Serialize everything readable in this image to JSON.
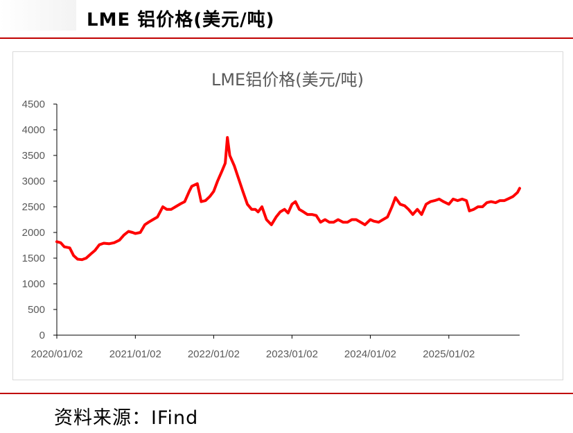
{
  "header": {
    "title": "LME 铝价格(美元/吨)"
  },
  "footer": {
    "source": "资料来源：IFind"
  },
  "chart_data": {
    "type": "line",
    "title": "LME铝价格(美元/吨)",
    "xlabel": "",
    "ylabel": "",
    "ylim": [
      0,
      4500
    ],
    "yticks": [
      "0",
      "500",
      "1000",
      "1500",
      "2000",
      "2500",
      "3000",
      "3500",
      "4000",
      "4500"
    ],
    "xlim": [
      "2020-01-02",
      "2025-11-28"
    ],
    "xticks": [
      {
        "date": "2020-01-02",
        "label": "2020/01/02"
      },
      {
        "date": "2021-01-02",
        "label": "2021/01/02"
      },
      {
        "date": "2022-01-02",
        "label": "2022/01/02"
      },
      {
        "date": "2023-01-02",
        "label": "2023/01/02"
      },
      {
        "date": "2024-01-02",
        "label": "2024/01/02"
      },
      {
        "date": "2025-01-02",
        "label": "2025/01/02"
      }
    ],
    "grid": false,
    "legend": "none",
    "colors": {
      "line": "#ff0000",
      "axis": "#000000",
      "text": "#595959"
    },
    "series": [
      {
        "x": [
          "2020-01-02",
          "2020-01-20",
          "2020-02-06",
          "2020-03-02",
          "2020-03-20",
          "2020-04-08",
          "2020-04-28",
          "2020-05-18",
          "2020-06-08",
          "2020-06-28",
          "2020-07-18",
          "2020-08-08",
          "2020-09-01",
          "2020-09-25",
          "2020-10-20",
          "2020-11-10",
          "2020-12-01",
          "2020-12-20",
          "2021-01-02",
          "2021-01-25",
          "2021-02-15",
          "2021-03-05",
          "2021-03-25",
          "2021-04-15",
          "2021-05-10",
          "2021-05-28",
          "2021-06-18",
          "2021-07-08",
          "2021-08-01",
          "2021-08-20",
          "2021-09-10",
          "2021-09-22",
          "2021-10-18",
          "2021-11-05",
          "2021-11-25",
          "2021-12-15",
          "2022-01-02",
          "2022-01-20",
          "2022-02-10",
          "2022-02-25",
          "2022-03-07",
          "2022-03-18",
          "2022-04-08",
          "2022-04-28",
          "2022-05-18",
          "2022-06-08",
          "2022-06-28",
          "2022-07-15",
          "2022-07-28",
          "2022-08-15",
          "2022-09-05",
          "2022-09-28",
          "2022-10-20",
          "2022-11-08",
          "2022-11-28",
          "2022-12-15",
          "2023-01-02",
          "2023-01-18",
          "2023-02-05",
          "2023-02-25",
          "2023-03-15",
          "2023-04-05",
          "2023-04-25",
          "2023-05-15",
          "2023-06-05",
          "2023-06-25",
          "2023-07-15",
          "2023-08-05",
          "2023-08-28",
          "2023-09-18",
          "2023-10-08",
          "2023-10-28",
          "2023-11-18",
          "2023-12-08",
          "2024-01-02",
          "2024-01-18",
          "2024-02-10",
          "2024-03-01",
          "2024-03-22",
          "2024-04-12",
          "2024-04-28",
          "2024-05-20",
          "2024-06-10",
          "2024-06-28",
          "2024-07-18",
          "2024-08-08",
          "2024-08-28",
          "2024-09-18",
          "2024-10-08",
          "2024-10-28",
          "2024-11-18",
          "2024-12-08",
          "2025-01-02",
          "2025-01-22",
          "2025-02-12",
          "2025-03-05",
          "2025-03-25",
          "2025-04-08",
          "2025-04-28",
          "2025-05-18",
          "2025-06-08",
          "2025-06-28",
          "2025-07-18",
          "2025-08-08",
          "2025-08-28",
          "2025-09-18",
          "2025-10-08",
          "2025-10-28",
          "2025-11-18",
          "2025-11-28"
        ],
        "y": [
          1820,
          1800,
          1720,
          1700,
          1550,
          1480,
          1470,
          1500,
          1580,
          1650,
          1760,
          1790,
          1780,
          1800,
          1850,
          1950,
          2020,
          2000,
          1980,
          2000,
          2150,
          2200,
          2250,
          2300,
          2500,
          2450,
          2450,
          2500,
          2560,
          2600,
          2800,
          2900,
          2950,
          2600,
          2620,
          2700,
          2800,
          3000,
          3200,
          3350,
          3850,
          3500,
          3300,
          3050,
          2800,
          2550,
          2450,
          2450,
          2400,
          2500,
          2250,
          2150,
          2300,
          2400,
          2450,
          2380,
          2550,
          2600,
          2450,
          2400,
          2350,
          2350,
          2330,
          2200,
          2250,
          2200,
          2200,
          2250,
          2200,
          2200,
          2250,
          2250,
          2200,
          2150,
          2250,
          2220,
          2200,
          2250,
          2300,
          2500,
          2680,
          2550,
          2520,
          2450,
          2350,
          2450,
          2350,
          2550,
          2600,
          2620,
          2650,
          2600,
          2550,
          2650,
          2620,
          2650,
          2620,
          2420,
          2450,
          2500,
          2500,
          2580,
          2600,
          2580,
          2620,
          2620,
          2660,
          2700,
          2780,
          2860
        ]
      }
    ]
  }
}
